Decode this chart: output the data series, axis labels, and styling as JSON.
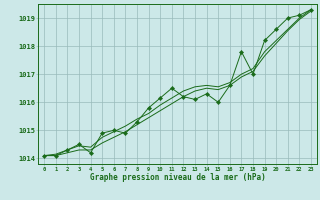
{
  "title": "Graphe pression niveau de la mer (hPa)",
  "bg_color": "#cce8e8",
  "grid_color": "#99bbbb",
  "line_color": "#1a6b1a",
  "x_hours": [
    0,
    1,
    2,
    3,
    4,
    5,
    6,
    7,
    8,
    9,
    10,
    11,
    12,
    13,
    14,
    15,
    16,
    17,
    18,
    19,
    20,
    21,
    22,
    23
  ],
  "line_actual": [
    1014.1,
    1014.1,
    1014.3,
    1014.5,
    1014.2,
    1014.9,
    1015.0,
    1014.9,
    1015.3,
    1015.8,
    1016.15,
    1016.5,
    1016.2,
    1016.1,
    1016.3,
    1016.0,
    1016.6,
    1017.8,
    1017.0,
    1018.2,
    1018.6,
    1019.0,
    1019.1,
    1019.3
  ],
  "line_smooth1": [
    1014.1,
    1014.15,
    1014.3,
    1014.45,
    1014.4,
    1014.75,
    1014.95,
    1015.15,
    1015.4,
    1015.6,
    1015.9,
    1016.15,
    1016.4,
    1016.55,
    1016.6,
    1016.55,
    1016.7,
    1017.0,
    1017.2,
    1017.8,
    1018.2,
    1018.6,
    1019.0,
    1019.3
  ],
  "line_smooth2": [
    1014.1,
    1014.1,
    1014.2,
    1014.3,
    1014.3,
    1014.55,
    1014.75,
    1014.95,
    1015.2,
    1015.45,
    1015.7,
    1015.95,
    1016.2,
    1016.4,
    1016.5,
    1016.45,
    1016.6,
    1016.9,
    1017.1,
    1017.65,
    1018.1,
    1018.55,
    1018.95,
    1019.25
  ],
  "ylim": [
    1013.8,
    1019.5
  ],
  "yticks": [
    1014,
    1015,
    1016,
    1017,
    1018,
    1019
  ],
  "xlim": [
    -0.5,
    23.5
  ]
}
